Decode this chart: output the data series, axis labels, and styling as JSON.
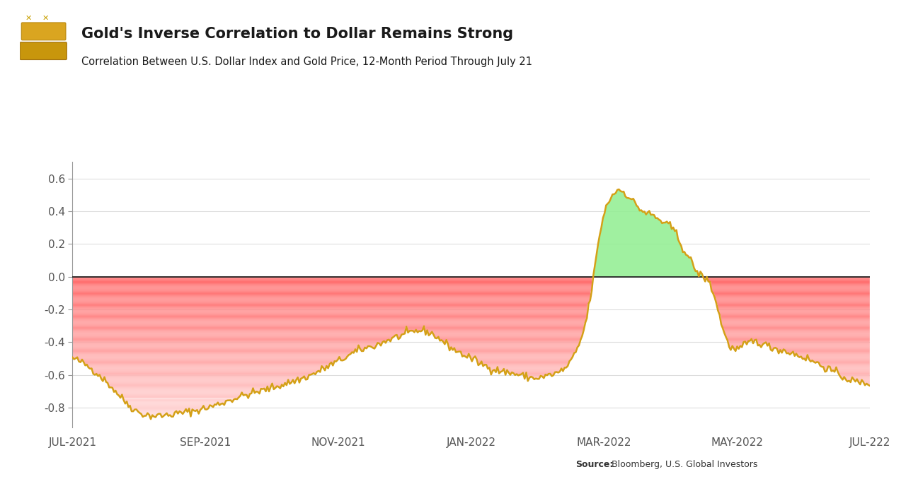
{
  "title": "Gold's Inverse Correlation to Dollar Remains Strong",
  "subtitle": "Correlation Between U.S. Dollar Index and Gold Price, 12-Month Period Through July 21",
  "source_bold": "Source:",
  "source_normal": " Bloomberg, U.S. Global Investors",
  "x_labels": [
    "JUL-2021",
    "SEP-2021",
    "NOV-2021",
    "JAN-2022",
    "MAR-2022",
    "MAY-2022",
    "JUL-222"
  ],
  "y_ticks": [
    0.6,
    0.4,
    0.2,
    0.0,
    -0.2,
    -0.4,
    -0.6,
    -0.8
  ],
  "ylim": [
    -0.92,
    0.7
  ],
  "line_color": "#D4A017",
  "fill_negative_top_color": "#FF7070",
  "fill_negative_bottom_color": "#FFDDDD",
  "fill_positive_color": "#90EE90",
  "background_color": "#FFFFFF",
  "title_color": "#1a1a1a",
  "subtitle_color": "#1a1a1a",
  "zero_line_color": "#222222",
  "spine_color": "#999999",
  "tick_color": "#555555",
  "grid_color": "#dddddd",
  "key_x": [
    0.0,
    0.02,
    0.05,
    0.08,
    0.11,
    0.14,
    0.17,
    0.2,
    0.22,
    0.25,
    0.27,
    0.3,
    0.32,
    0.34,
    0.36,
    0.38,
    0.4,
    0.42,
    0.44,
    0.46,
    0.48,
    0.5,
    0.52,
    0.54,
    0.56,
    0.58,
    0.6,
    0.62,
    0.635,
    0.645,
    0.655,
    0.665,
    0.675,
    0.685,
    0.695,
    0.705,
    0.715,
    0.725,
    0.735,
    0.745,
    0.755,
    0.765,
    0.775,
    0.785,
    0.8,
    0.82,
    0.85,
    0.87,
    0.89,
    0.91,
    0.93,
    0.95,
    0.97,
    1.0
  ],
  "key_y": [
    -0.5,
    -0.55,
    -0.68,
    -0.82,
    -0.85,
    -0.83,
    -0.8,
    -0.75,
    -0.72,
    -0.68,
    -0.65,
    -0.6,
    -0.55,
    -0.5,
    -0.45,
    -0.42,
    -0.38,
    -0.35,
    -0.33,
    -0.38,
    -0.45,
    -0.5,
    -0.55,
    -0.58,
    -0.6,
    -0.62,
    -0.6,
    -0.55,
    -0.42,
    -0.25,
    0.05,
    0.35,
    0.48,
    0.53,
    0.5,
    0.45,
    0.4,
    0.38,
    0.35,
    0.32,
    0.28,
    0.18,
    0.1,
    0.02,
    -0.05,
    -0.38,
    -0.4,
    -0.42,
    -0.45,
    -0.48,
    -0.52,
    -0.57,
    -0.62,
    -0.65
  ],
  "noise_seed": 42,
  "noise_std": 0.012,
  "n_points": 500
}
